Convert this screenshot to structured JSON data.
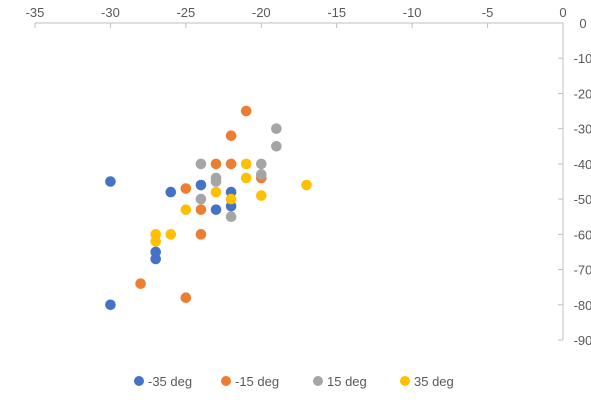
{
  "chart_data": {
    "type": "scatter",
    "title": "",
    "xlabel": "",
    "ylabel": "",
    "xlim": [
      -35,
      0
    ],
    "ylim": [
      -90,
      0
    ],
    "x_ticks": [
      -35,
      -30,
      -25,
      -20,
      -15,
      -10,
      -5,
      0
    ],
    "y_ticks": [
      0,
      -10,
      -20,
      -30,
      -40,
      -50,
      -60,
      -70,
      -80,
      -90
    ],
    "x_tick_labels": [
      "-35",
      "-30",
      "-25",
      "-20",
      "-15",
      "-10",
      "-5",
      "0"
    ],
    "y_tick_labels": [
      "0",
      "-10",
      "-20",
      "-30",
      "-40",
      "-50",
      "-60",
      "-70",
      "-80",
      "-90"
    ],
    "grid": false,
    "legend_position": "bottom",
    "series": [
      {
        "name": "-35 deg",
        "color": "#4472C4",
        "points": [
          [
            -30,
            -45
          ],
          [
            -26,
            -48
          ],
          [
            -24,
            -46
          ],
          [
            -22,
            -48
          ],
          [
            -22,
            -52
          ],
          [
            -23,
            -53
          ],
          [
            -27,
            -65
          ],
          [
            -27,
            -67
          ],
          [
            -30,
            -80
          ]
        ]
      },
      {
        "name": "-15 deg",
        "color": "#ED7D31",
        "points": [
          [
            -21,
            -25
          ],
          [
            -22,
            -32
          ],
          [
            -23,
            -40
          ],
          [
            -22,
            -40
          ],
          [
            -20,
            -44
          ],
          [
            -25,
            -47
          ],
          [
            -24,
            -53
          ],
          [
            -24,
            -60
          ],
          [
            -28,
            -74
          ],
          [
            -25,
            -78
          ]
        ]
      },
      {
        "name": "15 deg",
        "color": "#A5A5A5",
        "points": [
          [
            -19,
            -30
          ],
          [
            -19,
            -35
          ],
          [
            -24,
            -40
          ],
          [
            -20,
            -40
          ],
          [
            -20,
            -43
          ],
          [
            -23,
            -44
          ],
          [
            -23,
            -45
          ],
          [
            -24,
            -50
          ],
          [
            -22,
            -55
          ]
        ]
      },
      {
        "name": "35 deg",
        "color": "#FFC000",
        "points": [
          [
            -21,
            -40
          ],
          [
            -21,
            -44
          ],
          [
            -17,
            -46
          ],
          [
            -23,
            -48
          ],
          [
            -20,
            -49
          ],
          [
            -22,
            -50
          ],
          [
            -25,
            -53
          ],
          [
            -27,
            -60
          ],
          [
            -26,
            -60
          ],
          [
            -27,
            -62
          ]
        ]
      }
    ]
  }
}
